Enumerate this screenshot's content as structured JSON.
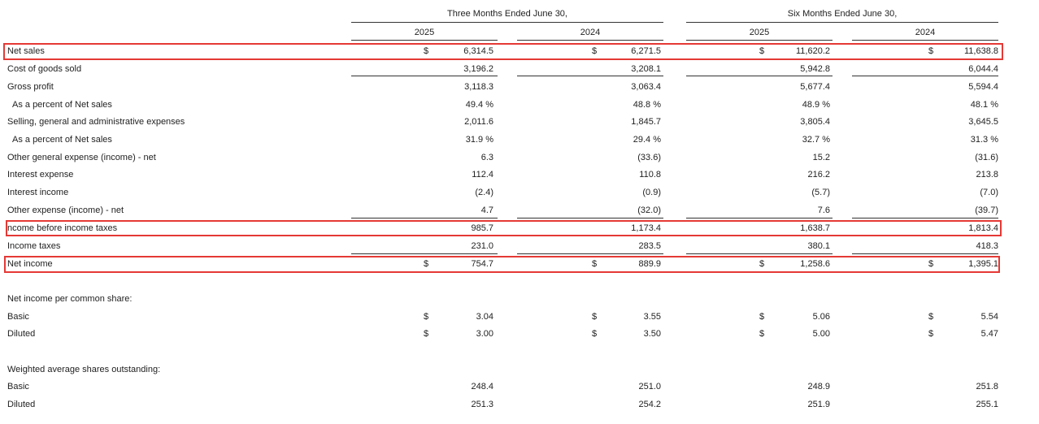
{
  "header": {
    "group_three": "Three Months Ended June 30,",
    "group_six": "Six Months Ended June 30,",
    "years": [
      "2025",
      "2024",
      "2025",
      "2024"
    ]
  },
  "rows": [
    {
      "label": "Net sales",
      "dollar": true,
      "values": [
        "6,314.5",
        "6,271.5",
        "11,620.2",
        "11,638.8"
      ]
    },
    {
      "label": "Cost of goods sold",
      "dollar": false,
      "values": [
        "3,196.2",
        "3,208.1",
        "5,942.8",
        "6,044.4"
      ]
    },
    {
      "label": "Gross profit",
      "dollar": false,
      "values": [
        "3,118.3",
        "3,063.4",
        "5,677.4",
        "5,594.4"
      ]
    },
    {
      "label": "As a percent of Net sales",
      "dollar": false,
      "values": [
        "49.4 %",
        "48.8 %",
        "48.9 %",
        "48.1 %"
      ]
    },
    {
      "label": "Selling, general and administrative expenses",
      "dollar": false,
      "values": [
        "2,011.6",
        "1,845.7",
        "3,805.4",
        "3,645.5"
      ]
    },
    {
      "label": "As a percent of Net sales",
      "dollar": false,
      "values": [
        "31.9 %",
        "29.4 %",
        "32.7 %",
        "31.3 %"
      ]
    },
    {
      "label": "Other general expense (income) - net",
      "dollar": false,
      "values": [
        "6.3",
        "(33.6)",
        "15.2",
        "(31.6)"
      ]
    },
    {
      "label": "Interest expense",
      "dollar": false,
      "values": [
        "112.4",
        "110.8",
        "216.2",
        "213.8"
      ]
    },
    {
      "label": "Interest income",
      "dollar": false,
      "values": [
        "(2.4)",
        "(0.9)",
        "(5.7)",
        "(7.0)"
      ]
    },
    {
      "label": "Other expense (income) - net",
      "dollar": false,
      "values": [
        "4.7",
        "(32.0)",
        "7.6",
        "(39.7)"
      ]
    },
    {
      "label": "ncome before income taxes",
      "dollar": false,
      "values": [
        "985.7",
        "1,173.4",
        "1,638.7",
        "1,813.4"
      ]
    },
    {
      "label": "Income taxes",
      "dollar": false,
      "values": [
        "231.0",
        "283.5",
        "380.1",
        "418.3"
      ]
    },
    {
      "label": "Net income",
      "dollar": true,
      "values": [
        "754.7",
        "889.9",
        "1,258.6",
        "1,395.1"
      ]
    },
    {
      "label": "Net income per common share:",
      "section": true
    },
    {
      "label": "Basic",
      "dollar": true,
      "values": [
        "3.04",
        "3.55",
        "5.06",
        "5.54"
      ]
    },
    {
      "label": "Diluted",
      "dollar": true,
      "values": [
        "3.00",
        "3.50",
        "5.00",
        "5.47"
      ]
    },
    {
      "label": "Weighted average shares outstanding:",
      "section": true
    },
    {
      "label": "Basic",
      "dollar": false,
      "values": [
        "248.4",
        "251.0",
        "248.9",
        "251.8"
      ]
    },
    {
      "label": "Diluted",
      "dollar": false,
      "values": [
        "251.3",
        "254.2",
        "251.9",
        "255.1"
      ]
    }
  ],
  "dollar_sign": "$",
  "highlight_color": "#e53935"
}
